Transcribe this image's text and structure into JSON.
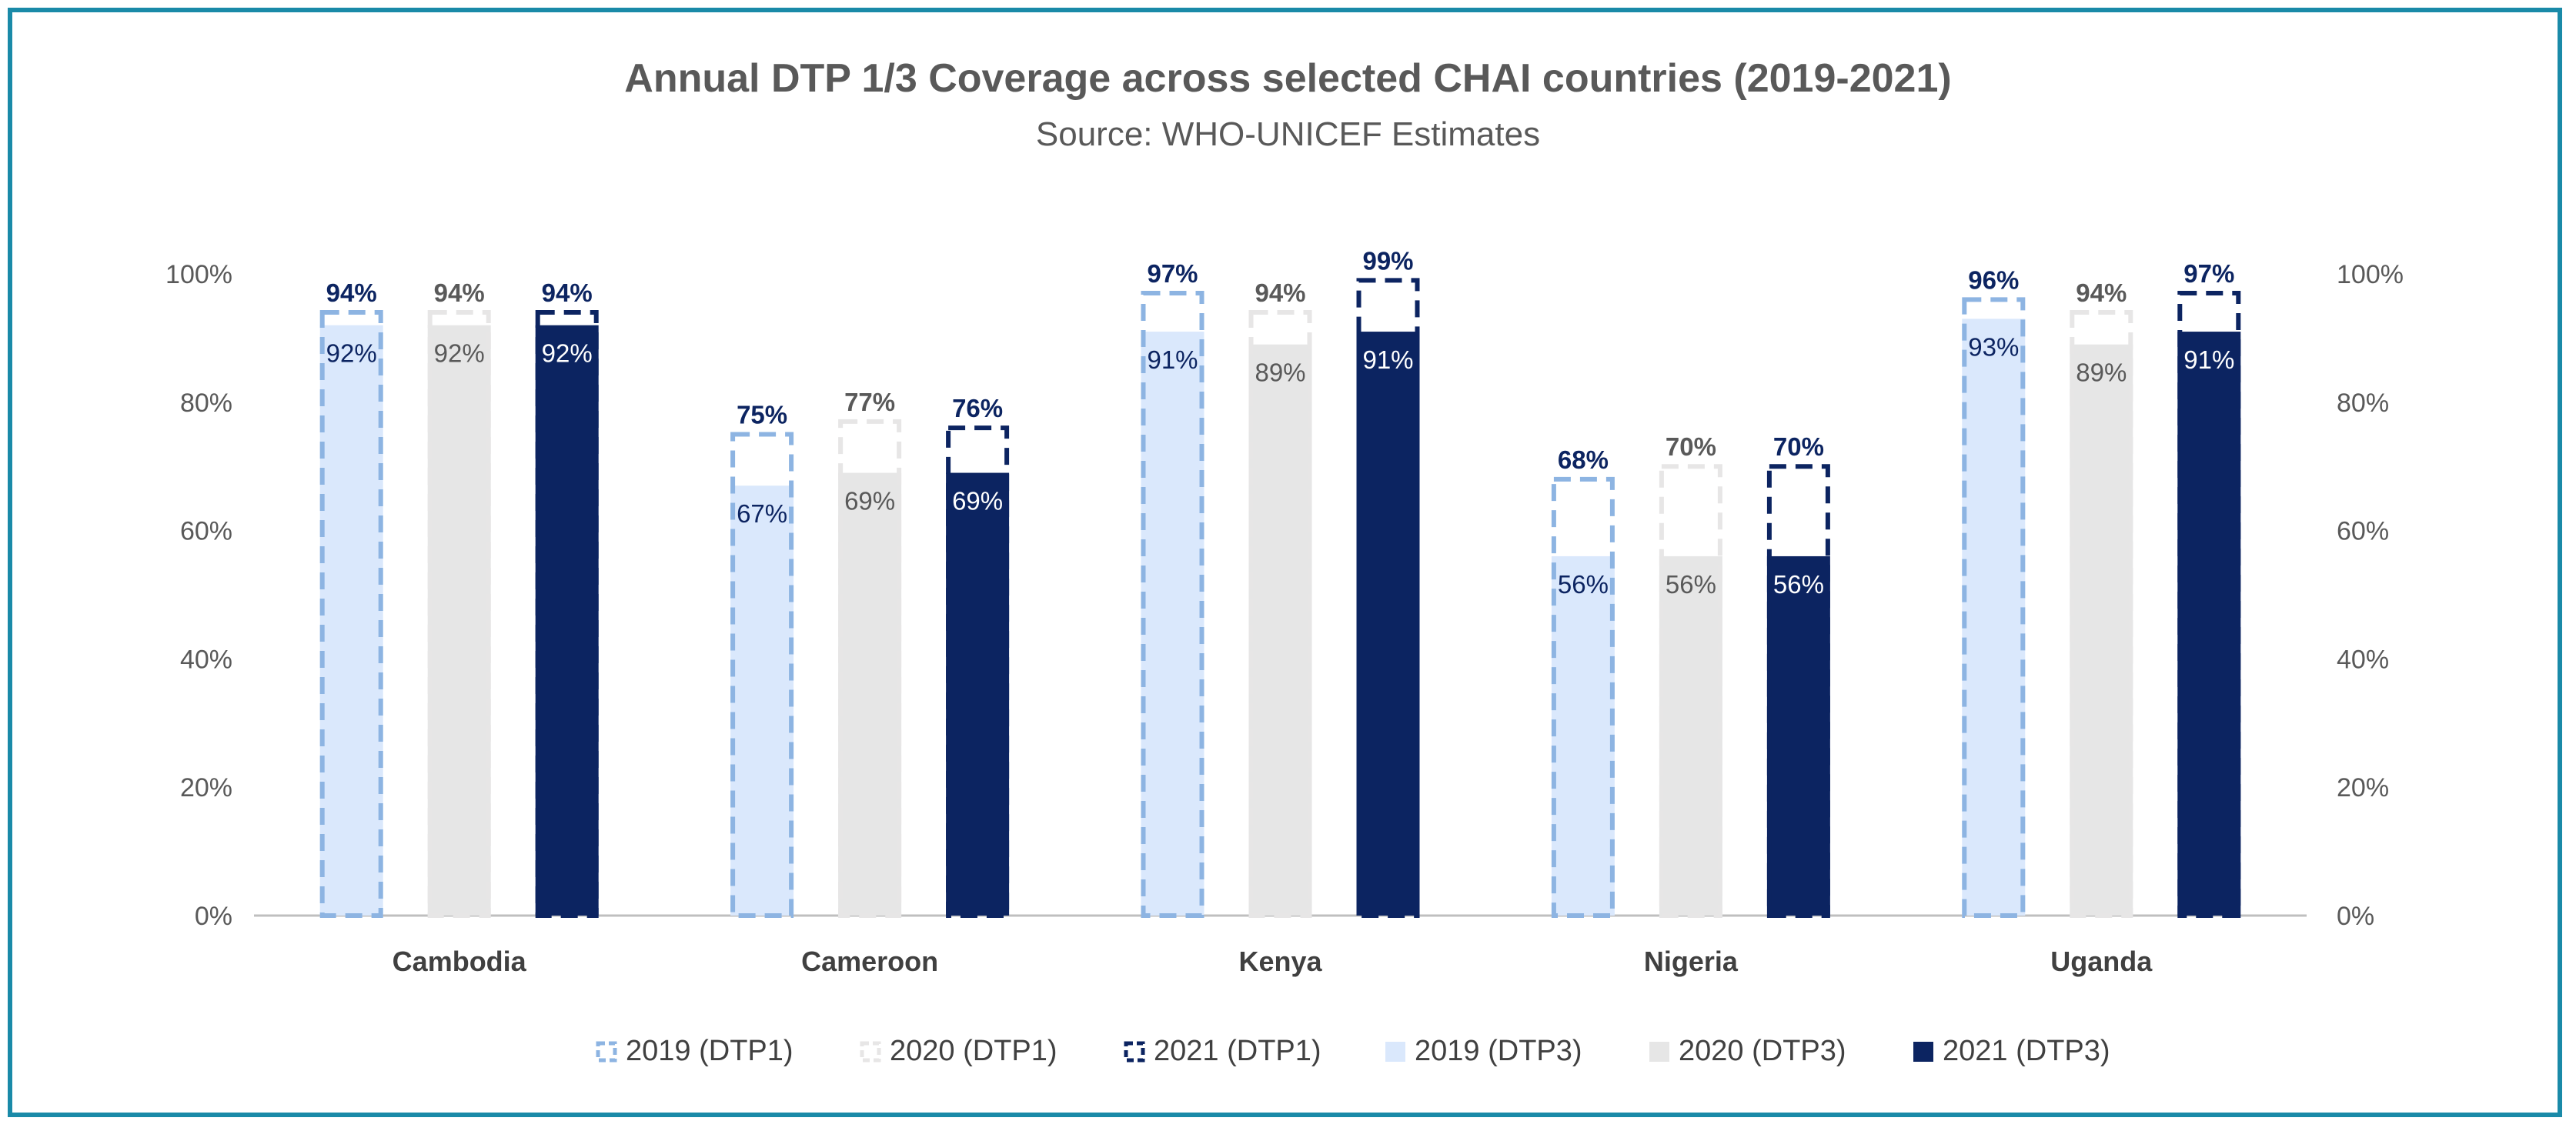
{
  "chart_data": {
    "type": "bar",
    "title": "Annual DTP 1/3 Coverage across selected CHAI countries (2019-2021)",
    "subtitle": "Source: WHO-UNICEF Estimates",
    "categories": [
      "Cambodia",
      "Cameroon",
      "Kenya",
      "Nigeria",
      "Uganda"
    ],
    "ylim": [
      0,
      100
    ],
    "yticks": [
      "0%",
      "20%",
      "40%",
      "60%",
      "80%",
      "100%"
    ],
    "ytick_values": [
      0,
      20,
      40,
      60,
      80,
      100
    ],
    "secondary_yaxis": true,
    "grid": false,
    "legend_position": "bottom",
    "series": [
      {
        "name": "2019 (DTP1)",
        "values": [
          94,
          75,
          97,
          68,
          96
        ],
        "labels": [
          "94%",
          "75%",
          "97%",
          "68%",
          "96%"
        ],
        "style": "dashed-outline",
        "color": "#8db4e2"
      },
      {
        "name": "2020 (DTP1)",
        "values": [
          94,
          77,
          94,
          70,
          94
        ],
        "labels": [
          "94%",
          "77%",
          "94%",
          "70%",
          "94%"
        ],
        "style": "dashed-outline",
        "color": "#e7e6e6"
      },
      {
        "name": "2021 (DTP1)",
        "values": [
          94,
          76,
          99,
          70,
          97
        ],
        "labels": [
          "94%",
          "76%",
          "99%",
          "70%",
          "97%"
        ],
        "style": "dashed-outline",
        "color": "#0c2461"
      },
      {
        "name": "2019 (DTP3)",
        "values": [
          92,
          67,
          91,
          56,
          93
        ],
        "labels": [
          "92%",
          "67%",
          "91%",
          "56%",
          "93%"
        ],
        "style": "solid",
        "color": "#dae8fc"
      },
      {
        "name": "2020 (DTP3)",
        "values": [
          92,
          69,
          89,
          56,
          89
        ],
        "labels": [
          "92%",
          "69%",
          "89%",
          "56%",
          "89%"
        ],
        "style": "solid",
        "color": "#e6e6e6"
      },
      {
        "name": "2021 (DTP3)",
        "values": [
          92,
          69,
          91,
          56,
          91
        ],
        "labels": [
          "92%",
          "69%",
          "91%",
          "56%",
          "91%"
        ],
        "style": "solid",
        "color": "#0c2461"
      }
    ]
  }
}
